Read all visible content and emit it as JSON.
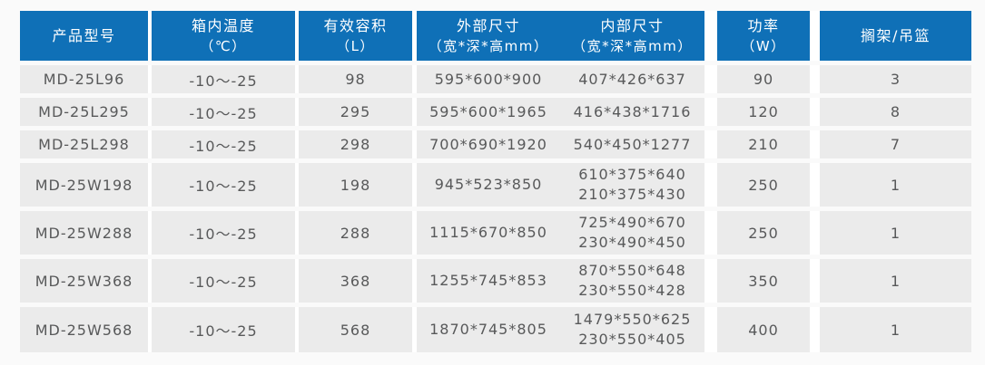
{
  "colors": {
    "header_bg": "#0f70b7",
    "header_text": "#ffffff",
    "row_bg": "#ebebeb",
    "cell_text": "#58595a",
    "gap": "#ffffff",
    "page_bg": "#fafafa"
  },
  "table": {
    "columns": [
      {
        "label": "产品型号",
        "sub": ""
      },
      {
        "label": "箱内温度",
        "sub": "（℃）"
      },
      {
        "label": "有效容积",
        "sub": "（L）"
      },
      {
        "label": "外部尺寸",
        "sub": "（宽*深*高mm）"
      },
      {
        "label": "内部尺寸",
        "sub": "（宽*深*高mm）"
      },
      {
        "label": "功率",
        "sub": "（W）"
      },
      {
        "label": "搁架/吊篮",
        "sub": ""
      }
    ],
    "rows": [
      {
        "model": "MD-25L96",
        "temp": "-10～-25",
        "volume": "98",
        "external": "595*600*900",
        "internal1": "407*426*637",
        "internal2": "",
        "power": "90",
        "shelves": "3"
      },
      {
        "model": "MD-25L295",
        "temp": "-10～-25",
        "volume": "295",
        "external": "595*600*1965",
        "internal1": "416*438*1716",
        "internal2": "",
        "power": "120",
        "shelves": "8"
      },
      {
        "model": "MD-25L298",
        "temp": "-10～-25",
        "volume": "298",
        "external": "700*690*1920",
        "internal1": "540*450*1277",
        "internal2": "",
        "power": "210",
        "shelves": "7"
      },
      {
        "model": "MD-25W198",
        "temp": "-10～-25",
        "volume": "198",
        "external": "945*523*850",
        "internal1": "610*375*640",
        "internal2": "210*375*430",
        "power": "250",
        "shelves": "1"
      },
      {
        "model": "MD-25W288",
        "temp": "-10～-25",
        "volume": "288",
        "external": "1115*670*850",
        "internal1": "725*490*670",
        "internal2": "230*490*450",
        "power": "250",
        "shelves": "1"
      },
      {
        "model": "MD-25W368",
        "temp": "-10～-25",
        "volume": "368",
        "external": "1255*745*853",
        "internal1": "870*550*648",
        "internal2": "230*550*428",
        "power": "350",
        "shelves": "1"
      },
      {
        "model": "MD-25W568",
        "temp": "-10～-25",
        "volume": "568",
        "external": "1870*745*805",
        "internal1": "1479*550*625",
        "internal2": "230*550*405",
        "power": "400",
        "shelves": "1"
      }
    ]
  }
}
